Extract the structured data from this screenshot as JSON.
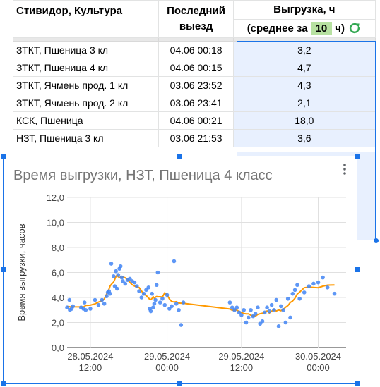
{
  "sheet": {
    "header": {
      "col1": "Стивидор, Культура",
      "col2_line1": "Последний",
      "col2_line2": "выезд",
      "col3_line1": "Выгрузка, ч",
      "avg_prefix": "(среднее за",
      "avg_value": "10",
      "avg_suffix": "ч)"
    },
    "rows": [
      {
        "name": "ЗТКТ, Пшеница 3 кл",
        "last": "04.06 00:18",
        "unload": "3,2"
      },
      {
        "name": "ЗТКТ, Пшеница 4 кл",
        "last": "04.06 00:15",
        "unload": "4,7"
      },
      {
        "name": "ЗТКТ, Ячмень прод. 1 кл",
        "last": "03.06 23:52",
        "unload": "4,3"
      },
      {
        "name": "ЗТКТ, Ячмень прод. 2 кл",
        "last": "03.06 23:41",
        "unload": "2,1"
      },
      {
        "name": "КСК, Пшеница",
        "last": "04.06 00:21",
        "unload": "18,0"
      },
      {
        "name": "НЗТ, Пшеница 3 кл",
        "last": "03.06 21:53",
        "unload": "3,6"
      }
    ],
    "avg_color": "#b7e1a1",
    "selection_color": "#1a73e8"
  },
  "chart_data": {
    "type": "scatter",
    "title": "Время выгрузки, НЗТ, Пшеница 4 класс",
    "ylabel": "Время выгрузки, часов",
    "xlabel": "",
    "ylim": [
      0,
      12
    ],
    "yticks": [
      "0,0",
      "2,0",
      "4,0",
      "6,0",
      "8,0",
      "10,0",
      "12,0"
    ],
    "xticks": [
      {
        "l1": "28.05.2024",
        "l2": "12:00"
      },
      {
        "l1": "29.05.2024",
        "l2": "00:00"
      },
      {
        "l1": "29.05.2024",
        "l2": "12:00"
      },
      {
        "l1": "30.05.2024",
        "l2": "00:00"
      }
    ],
    "grid": true,
    "point_color": "#4285f4",
    "trend_color": "#ff9900",
    "series": [
      {
        "kind": "points",
        "x": [
          0.0,
          0.1,
          0.12,
          0.2,
          0.25,
          0.6,
          0.7,
          0.75,
          0.8,
          1.0,
          1.2,
          1.35,
          1.5,
          1.6,
          1.7,
          1.75,
          1.8,
          1.85,
          1.9,
          2.0,
          2.05,
          2.1,
          2.15,
          2.2,
          2.25,
          2.3,
          2.35,
          2.4,
          2.5,
          2.6,
          2.7,
          2.8,
          2.9,
          3.0,
          3.1,
          3.2,
          3.3,
          3.4,
          3.5,
          3.55,
          3.6,
          3.65,
          3.7,
          3.75,
          3.8,
          3.85,
          3.9,
          4.0,
          4.1,
          4.2,
          4.3,
          4.4,
          4.5,
          4.6,
          4.7,
          4.8,
          4.9,
          5.0,
          7.0,
          7.1,
          7.2,
          7.3,
          7.4,
          7.5,
          7.6,
          7.7,
          7.8,
          7.9,
          8.0,
          8.1,
          8.2,
          8.3,
          8.4,
          8.5,
          8.6,
          8.7,
          8.8,
          8.9,
          9.0,
          9.1,
          9.2,
          9.3,
          9.4,
          9.5,
          9.6,
          9.7,
          9.8,
          9.9,
          10.0,
          10.2,
          10.4,
          10.6,
          10.8,
          11.0,
          11.2,
          11.5
        ],
        "y": [
          3.2,
          3.8,
          3.0,
          3.1,
          3.3,
          3.2,
          3.1,
          3.6,
          3.0,
          3.1,
          3.8,
          3.4,
          3.8,
          3.5,
          4.1,
          4.4,
          4.5,
          4.3,
          6.7,
          5.7,
          4.9,
          6.1,
          4.7,
          5.8,
          6.3,
          6.5,
          5.6,
          5.3,
          5.1,
          5.4,
          5.5,
          5.3,
          5.2,
          4.9,
          4.5,
          4.0,
          4.3,
          4.6,
          4.8,
          3.1,
          2.9,
          4.3,
          3.2,
          3.5,
          3.8,
          5.0,
          6.0,
          3.6,
          3.9,
          3.4,
          4.2,
          3.1,
          3.3,
          6.9,
          3.5,
          3.0,
          1.8,
          3.6,
          3.6,
          3.2,
          3.0,
          3.2,
          2.8,
          2.6,
          3.0,
          2.0,
          2.4,
          3.0,
          2.5,
          2.7,
          3.2,
          1.9,
          2.1,
          2.8,
          3.2,
          2.9,
          3.4,
          3.0,
          3.8,
          1.7,
          3.3,
          3.0,
          2.0,
          3.9,
          2.4,
          4.3,
          4.6,
          5.0,
          3.9,
          4.4,
          4.9,
          5.1,
          5.2,
          5.6,
          4.8,
          4.3
        ]
      }
    ]
  }
}
